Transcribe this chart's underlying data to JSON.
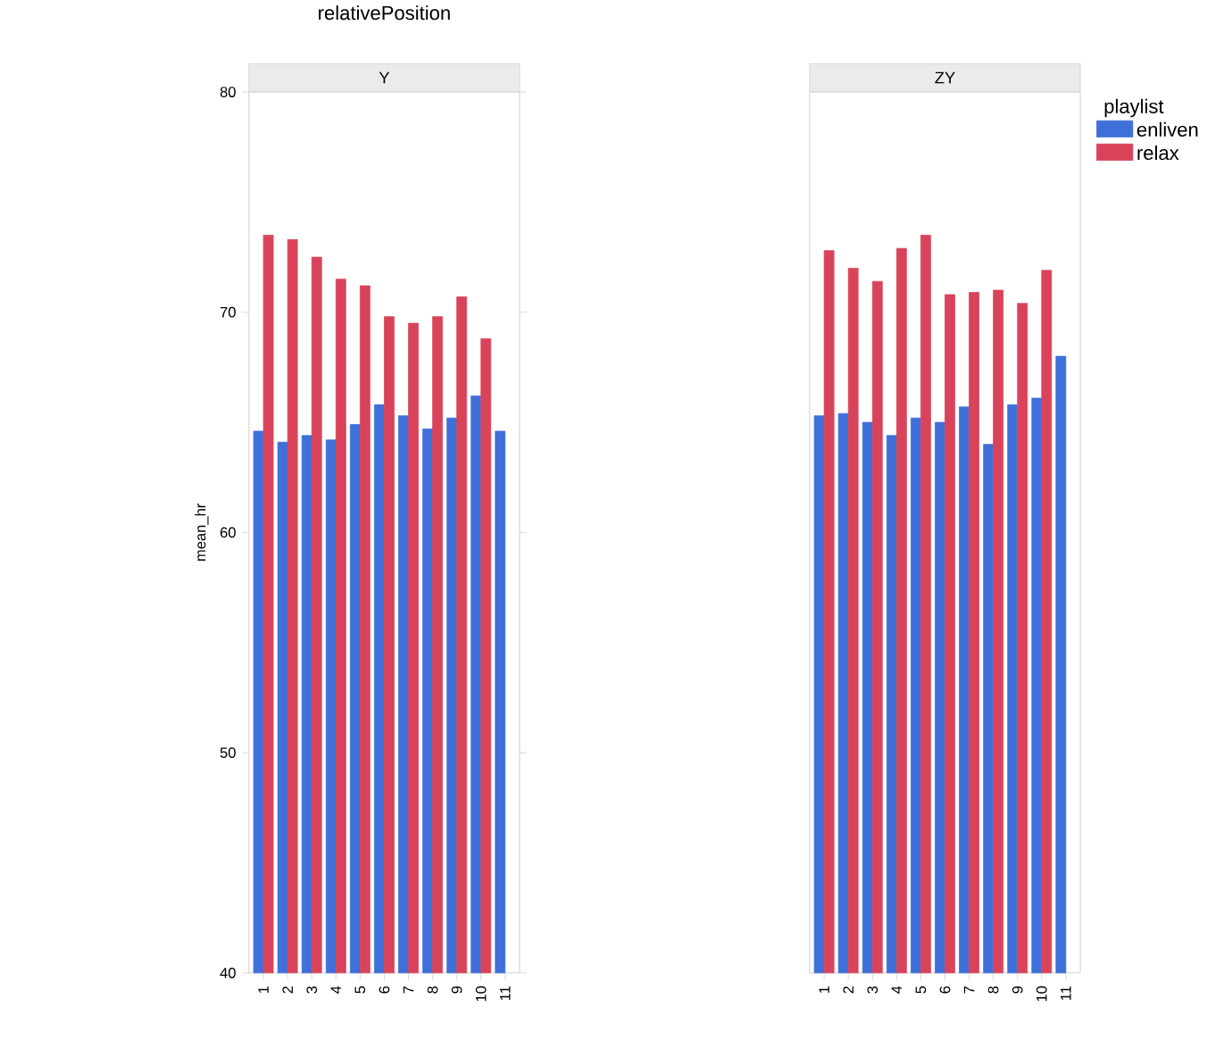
{
  "chart_data": [
    {
      "type": "bar",
      "title": "relativePosition",
      "subtitle": "Y",
      "ylabel": "mean_hr",
      "categories": [
        "1",
        "2",
        "3",
        "4",
        "5",
        "6",
        "7",
        "8",
        "9",
        "10",
        "11"
      ],
      "ylim": [
        40,
        80
      ],
      "yticks": [
        40,
        50,
        60,
        70,
        80
      ],
      "legend": false,
      "series": [
        {
          "color": "#3f6fd9",
          "values": [
            64.6,
            64.1,
            64.4,
            64.2,
            64.9,
            65.8,
            65.3,
            64.7,
            65.2,
            66.2,
            64.6
          ]
        },
        {
          "color": "#d9435a",
          "values": [
            73.5,
            73.3,
            72.5,
            71.5,
            71.2,
            69.8,
            69.5,
            69.8,
            70.7,
            68.8,
            null
          ]
        }
      ]
    },
    {
      "type": "bar",
      "subtitle": "ZY",
      "legend_title": "playlist",
      "legend": "right",
      "tick_labels": "x",
      "categories": [
        "1",
        "2",
        "3",
        "4",
        "5",
        "6",
        "7",
        "8",
        "9",
        "10",
        "11"
      ],
      "ylim": [
        40,
        80
      ],
      "yticks": [
        40,
        50,
        60,
        70,
        80
      ],
      "series": [
        {
          "name": "enliven",
          "color": "#3f6fd9",
          "values": [
            65.3,
            65.4,
            65.0,
            64.4,
            65.2,
            65.0,
            65.7,
            64.0,
            65.8,
            66.1,
            68.0
          ]
        },
        {
          "name": "relax",
          "color": "#d9435a",
          "values": [
            72.8,
            72.0,
            71.4,
            72.9,
            73.5,
            70.8,
            70.9,
            71.0,
            70.4,
            71.9,
            null
          ]
        }
      ]
    }
  ]
}
